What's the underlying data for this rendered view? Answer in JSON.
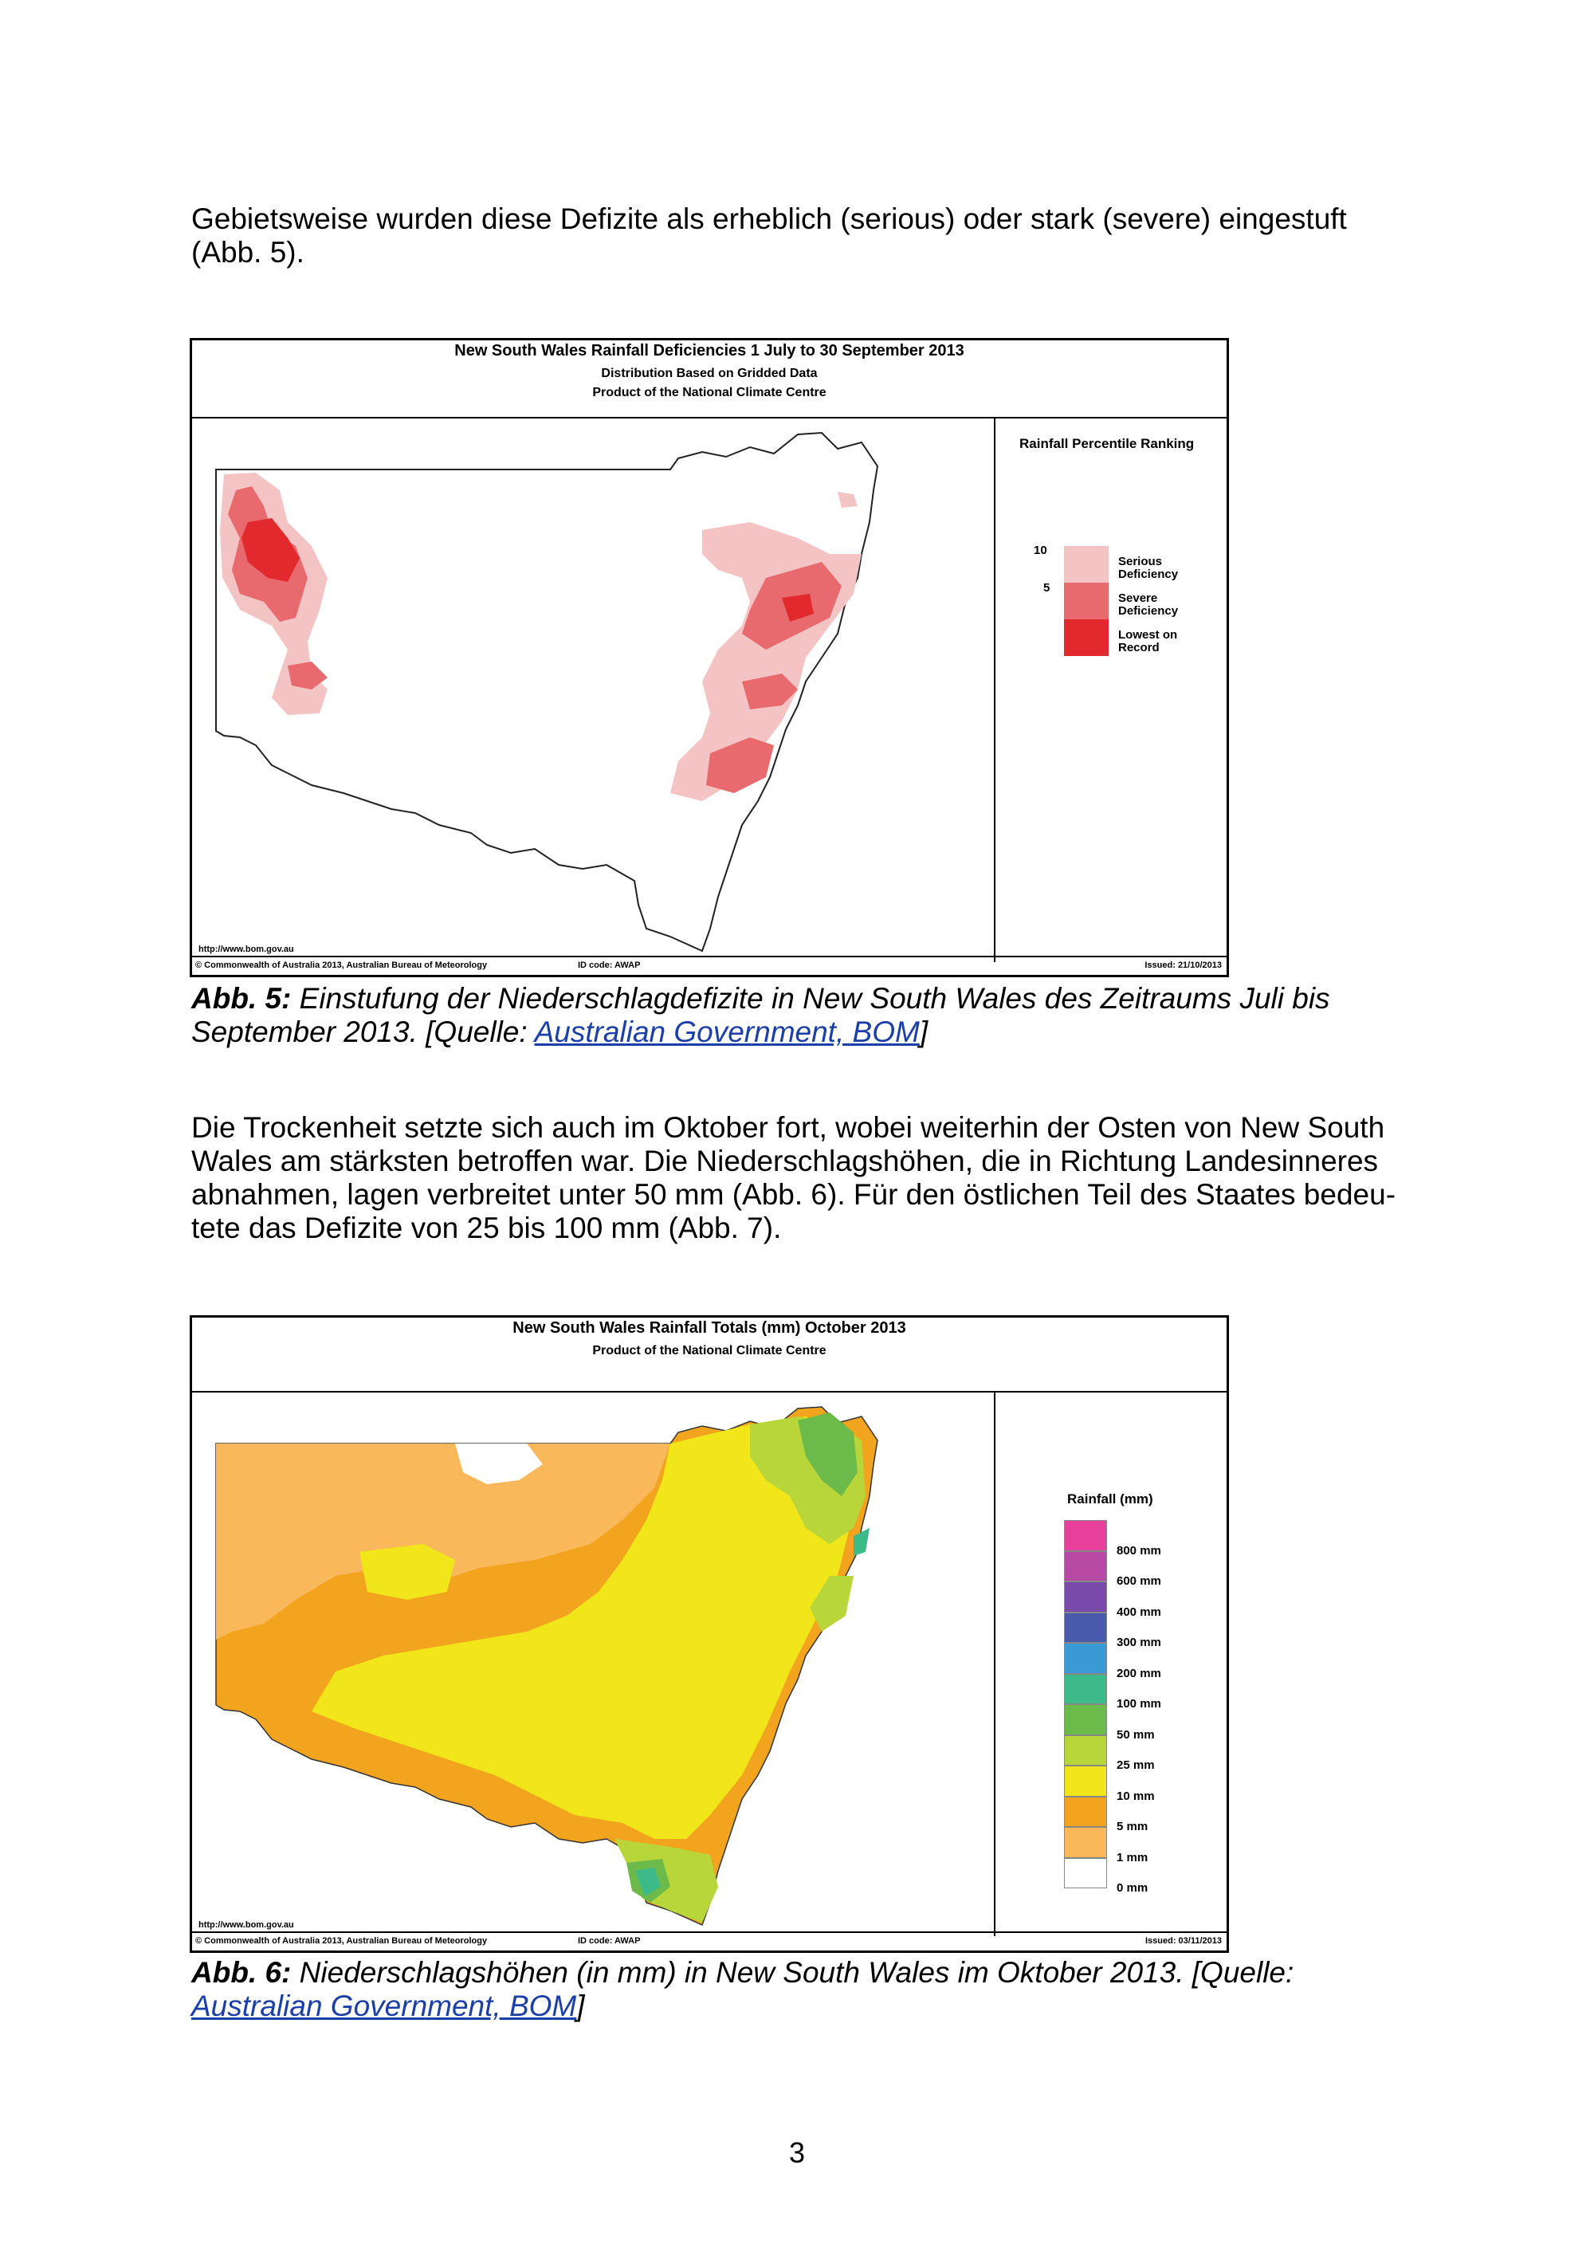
{
  "para1": "Gebietsweise wurden diese Defizite als erheblich (serious) oder stark (severe) eingestuft (Abb. 5).",
  "figure5": {
    "title": "New South Wales Rainfall Deficiencies   1 July to 30 September 2013",
    "subtitle1": "Distribution Based on Gridded Data",
    "subtitle2": "Product of the National Climate Centre",
    "legend_title": "Rainfall Percentile Ranking",
    "legend_ticks": [
      "10",
      "5"
    ],
    "legend": [
      {
        "label1": "Serious",
        "label2": "Deficiency",
        "color": "#f4c4c4"
      },
      {
        "label1": "Severe",
        "label2": "Deficiency",
        "color": "#e86a6e"
      },
      {
        "label1": "Lowest on",
        "label2": "Record",
        "color": "#e22a2e"
      }
    ],
    "url": "http://www.bom.gov.au",
    "copyright": "© Commonwealth of Australia 2013, Australian Bureau of Meteorology",
    "id_code": "ID code: AWAP",
    "issued": "Issued: 21/10/2013"
  },
  "caption5": {
    "label": "Abb. 5:",
    "text": " Einstufung der Niederschlagdefizite in New South Wales des Zeitraums Juli bis September 2013. [Quelle: ",
    "link": "Australian Government, BOM",
    "end": "]"
  },
  "para2": "Die Trockenheit setzte sich auch im Oktober fort, wobei weiterhin der Osten von New South Wales am stärksten betroffen war. Die Niederschlagshöhen, die in Richtung Landesinneres abnahmen, lagen verbreitet unter 50 mm (Abb. 6). Für den östlichen Teil des Staates bedeu-tete das Defizite von 25 bis 100 mm (Abb. 7).",
  "figure6": {
    "title": "New South Wales Rainfall Totals (mm)    October 2013",
    "subtitle": "Product of the National Climate Centre",
    "legend_title": "Rainfall (mm)",
    "legend": [
      {
        "label": "800 mm",
        "color": "#e6409a"
      },
      {
        "label": "600 mm",
        "color": "#b84aa6"
      },
      {
        "label": "400 mm",
        "color": "#7a4aaa"
      },
      {
        "label": "300 mm",
        "color": "#4a5aaa"
      },
      {
        "label": "200 mm",
        "color": "#3a9ad6"
      },
      {
        "label": "100 mm",
        "color": "#3cba8a"
      },
      {
        "label": "50 mm",
        "color": "#6cba4a"
      },
      {
        "label": "25 mm",
        "color": "#b8d63a"
      },
      {
        "label": "10 mm",
        "color": "#f0e61a"
      },
      {
        "label": "5 mm",
        "color": "#f2a41e"
      },
      {
        "label": "1 mm",
        "color": "#f9b85a"
      },
      {
        "label": "0 mm",
        "color": "#ffffff"
      }
    ],
    "url": "http://www.bom.gov.au",
    "copyright": "© Commonwealth of Australia 2013, Australian Bureau of Meteorology",
    "id_code": "ID code: AWAP",
    "issued": "Issued: 03/11/2013"
  },
  "caption6": {
    "label": "Abb. 6:",
    "text": " Niederschlagshöhen (in mm) in New South Wales im Oktober 2013. [Quelle: ",
    "link": "Australian Government, BOM",
    "end": "]"
  },
  "page_number": "3"
}
